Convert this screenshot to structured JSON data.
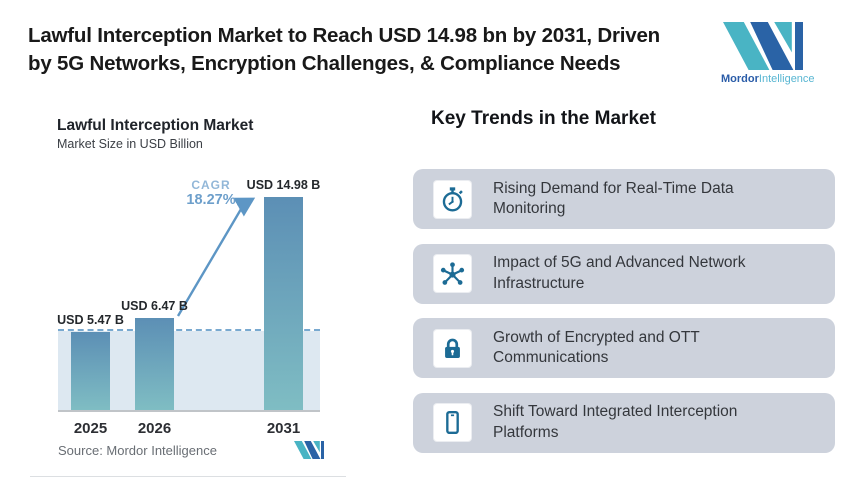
{
  "header": {
    "headline_lines": [
      "Lawful Interception Market to Reach USD 14.98 bn by 2031, Driven",
      "by 5G Networks, Encryption Challenges, & Compliance Needs"
    ]
  },
  "brand": {
    "name_primary": "Mordor",
    "name_secondary": "Intelligence"
  },
  "chart": {
    "title": "Lawful Interception Market",
    "subtitle": "Market Size in USD Billion",
    "cagr_label": "CAGR",
    "cagr_value": "18.27%",
    "source": "Source: Mordor Intelligence",
    "bars": [
      {
        "year": "2025",
        "label": "USD 5.47 B"
      },
      {
        "year": "2026",
        "label": "USD 6.47 B"
      },
      {
        "year": "2031",
        "label": "USD 14.98 B"
      }
    ]
  },
  "chart_data": {
    "type": "bar",
    "categories": [
      "2025",
      "2026",
      "2031"
    ],
    "values": [
      5.47,
      6.47,
      14.98
    ],
    "bar_labels": [
      "USD 5.47 B",
      "USD 6.47 B",
      "USD 14.98 B"
    ],
    "title": "Lawful Interception Market",
    "subtitle": "Market Size in USD Billion",
    "xlabel": "",
    "ylabel": "Market Size in USD Billion",
    "unit": "USD Billion",
    "ylim": [
      0,
      16
    ],
    "grid": false,
    "legend": false,
    "annotations": [
      {
        "text": "CAGR 18.27%",
        "type": "growth-arrow",
        "from_category": "2026",
        "to_category": "2031"
      }
    ],
    "reference_line": {
      "style": "dashed",
      "value": 5.47
    },
    "source": "Source: Mordor Intelligence"
  },
  "trends": {
    "heading": "Key Trends in the Market",
    "items": [
      {
        "icon": "stopwatch-icon",
        "text": "Rising Demand for Real-Time Data Monitoring"
      },
      {
        "icon": "network-icon",
        "text": "Impact of 5G and Advanced Network Infrastructure"
      },
      {
        "icon": "lock-icon",
        "text": "Growth of Encrypted and OTT Communications"
      },
      {
        "icon": "smartphone-icon",
        "text": "Shift Toward Integrated Interception Platforms"
      }
    ]
  },
  "colors": {
    "teal": "#49b4c4",
    "dark-blue": "#2a63a6",
    "icon-blue": "#1c6b95",
    "card-bg": "#cdd2dc",
    "bar-top": "#5c8fb5",
    "bar-bottom": "#7fbdc3",
    "region": "#dde8f1",
    "dashed": "#78a9d0",
    "arrow": "#5d96c5",
    "cagr": "#6d9fcb"
  }
}
